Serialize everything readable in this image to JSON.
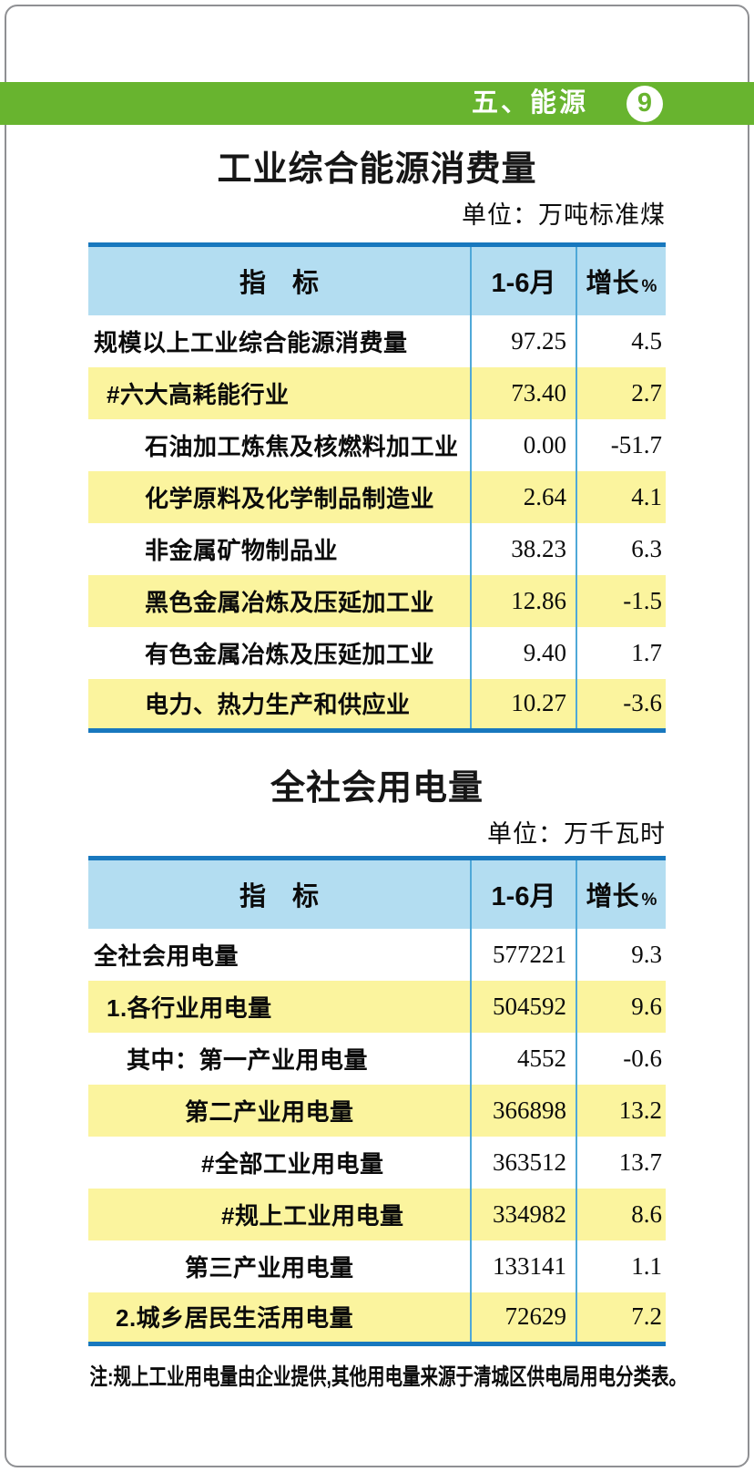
{
  "header": {
    "section_title": "五、能源",
    "page_number": "9"
  },
  "colors": {
    "green": "#68b42f",
    "header_blue": "#b3ddf1",
    "border_blue": "#1878be",
    "separator_blue": "#4fa8d8",
    "row_yellow": "#fbf49e",
    "frame_gray": "#8f9093"
  },
  "tables": [
    {
      "title": "工业综合能源消费量",
      "unit": "单位：万吨标准煤",
      "columns": {
        "indicator": "指　标",
        "period": "1-6月",
        "growth": "增长",
        "growth_unit": "%"
      },
      "rows": [
        {
          "label": "规模以上工业综合能源消费量",
          "period": "97.25",
          "growth": "4.5"
        },
        {
          "label": "#六大高耗能行业",
          "period": "73.40",
          "growth": "2.7"
        },
        {
          "label": "石油加工炼焦及核燃料加工业",
          "period": "0.00",
          "growth": "-51.7"
        },
        {
          "label": "化学原料及化学制品制造业",
          "period": "2.64",
          "growth": "4.1"
        },
        {
          "label": "非金属矿物制品业",
          "period": "38.23",
          "growth": "6.3"
        },
        {
          "label": "黑色金属冶炼及压延加工业",
          "period": "12.86",
          "growth": "-1.5"
        },
        {
          "label": "有色金属冶炼及压延加工业",
          "period": "9.40",
          "growth": "1.7"
        },
        {
          "label": "电力、热力生产和供应业",
          "period": "10.27",
          "growth": "-3.6"
        }
      ]
    },
    {
      "title": "全社会用电量",
      "unit": "单位：万千瓦时",
      "columns": {
        "indicator": "指　标",
        "period": "1-6月",
        "growth": "增长",
        "growth_unit": "%"
      },
      "rows": [
        {
          "label": "全社会用电量",
          "period": "577221",
          "growth": "9.3"
        },
        {
          "label": "1.各行业用电量",
          "period": "504592",
          "growth": "9.6"
        },
        {
          "label": "其中：第一产业用电量",
          "period": "4552",
          "growth": "-0.6"
        },
        {
          "label": "第二产业用电量",
          "period": "366898",
          "growth": "13.2"
        },
        {
          "label": "#全部工业用电量",
          "period": "363512",
          "growth": "13.7"
        },
        {
          "label": "#规上工业用电量",
          "period": "334982",
          "growth": "8.6"
        },
        {
          "label": "第三产业用电量",
          "period": "133141",
          "growth": "1.1"
        },
        {
          "label": "2.城乡居民生活用电量",
          "period": "72629",
          "growth": "7.2"
        }
      ]
    }
  ],
  "footnote": "注:规上工业用电量由企业提供,其他用电量来源于清城区供电局用电分类表。"
}
